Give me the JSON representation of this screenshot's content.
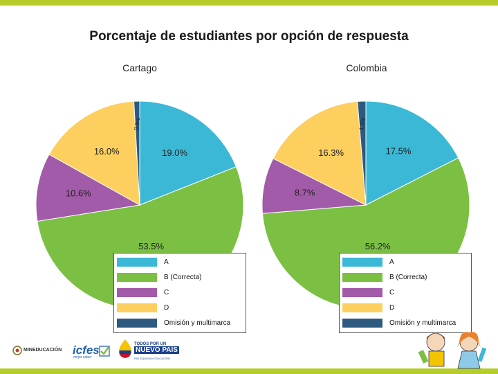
{
  "slide": {
    "title": "Porcentaje de estudiantes por opción de respuesta"
  },
  "chart_data": [
    {
      "type": "pie",
      "title": "Cartago",
      "categories": [
        "A",
        "B (Correcta)",
        "C",
        "D",
        "Omisión y multimarca"
      ],
      "values": [
        19.0,
        53.5,
        10.6,
        16.0,
        0.9
      ],
      "labels": [
        "19.0%",
        "53.5%",
        "10.6%",
        "16.0%",
        "0.9%"
      ],
      "legend_position": "bottom-right"
    },
    {
      "type": "pie",
      "title": "Colombia",
      "categories": [
        "A",
        "B (Correcta)",
        "C",
        "D",
        "Omisión y multimarca"
      ],
      "values": [
        17.5,
        56.2,
        8.7,
        16.3,
        1.3
      ],
      "labels": [
        "17.5%",
        "56.2%",
        "8.7%",
        "16.3%",
        "1.3%"
      ],
      "legend_position": "bottom-right"
    }
  ],
  "colors": {
    "A": "#3bb8d6",
    "B (Correcta)": "#7bc043",
    "C": "#a25ba8",
    "D": "#fccf5e",
    "Omisión y multimarca": "#2f5a80",
    "accent_bar": "#b5cc2a"
  },
  "legend": {
    "items": [
      "A",
      "B (Correcta)",
      "C",
      "D",
      "Omisión y multimarca"
    ]
  },
  "footer": {
    "mineducacion": "MINEDUCACIÓN",
    "icfes": "icfes",
    "icfes_sub": "mejor saber",
    "pais_line1": "TODOS POR UN",
    "pais_line2": "NUEVO PAÍS",
    "pais_line3": "PAZ EQUIDAD EDUCACIÓN"
  }
}
